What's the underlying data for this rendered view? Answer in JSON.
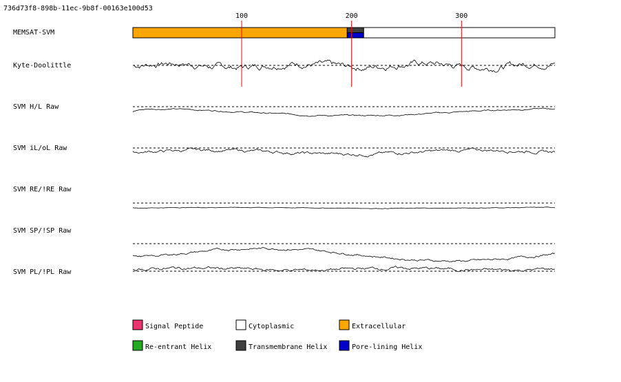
{
  "header": {
    "uuid": "736d73f8-898b-11ec-9b8f-00163e100d53"
  },
  "chart_data": {
    "type": "line",
    "sequence_length": 385,
    "axis_ticks": [
      100,
      200,
      300
    ],
    "tracks": [
      {
        "label": "MEMSAT-SVM",
        "kind": "topology"
      },
      {
        "label": "Kyte-Doolittle",
        "kind": "line"
      },
      {
        "label": "SVM H/L Raw",
        "kind": "line"
      },
      {
        "label": "SVM iL/oL Raw",
        "kind": "line"
      },
      {
        "label": "SVM RE/!RE Raw",
        "kind": "line"
      },
      {
        "label": "SVM SP/!SP Raw",
        "kind": "line"
      },
      {
        "label": "SVM PL/!PL Raw",
        "kind": "line"
      }
    ],
    "topology_segments": [
      {
        "type": "Extracellular",
        "start": 1,
        "end": 196,
        "color": "#FFA500"
      },
      {
        "type": "Transmembrane Helix",
        "start": 196,
        "end": 211,
        "color": "#3F3F3F",
        "height": "top-half"
      },
      {
        "type": "Pore-lining Helix",
        "start": 196,
        "end": 211,
        "color": "#0000CC",
        "height": "bottom-half"
      },
      {
        "type": "Cytoplasmic",
        "start": 211,
        "end": 385,
        "color": "#FFFFFF"
      }
    ],
    "legend": [
      {
        "label": "Signal Peptide",
        "color": "#E8336E"
      },
      {
        "label": "Cytoplasmic",
        "color": "#FFFFFF"
      },
      {
        "label": "Extracellular",
        "color": "#FFA500"
      },
      {
        "label": "Re-entrant Helix",
        "color": "#22AA22"
      },
      {
        "label": "Transmembrane Helix",
        "color": "#3F3F3F"
      },
      {
        "label": "Pore-lining Helix",
        "color": "#0000CC"
      }
    ]
  }
}
